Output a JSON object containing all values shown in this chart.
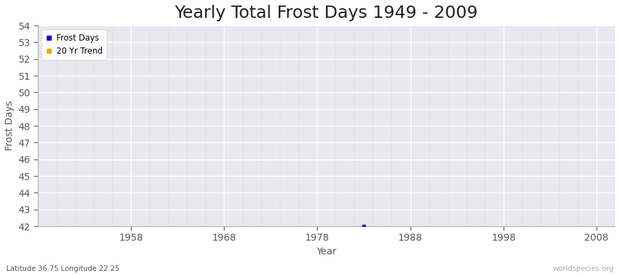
{
  "title": "Yearly Total Frost Days 1949 - 2009",
  "xlabel": "Year",
  "ylabel": "Frost Days",
  "xlim": [
    1948,
    2010
  ],
  "ylim": [
    42,
    54
  ],
  "yticks": [
    42,
    43,
    44,
    45,
    46,
    47,
    48,
    49,
    50,
    51,
    52,
    53,
    54
  ],
  "xticks": [
    1958,
    1968,
    1978,
    1988,
    1998,
    2008
  ],
  "data_points_x": [
    1983
  ],
  "data_points_y": [
    42
  ],
  "data_color": "#0000ee",
  "trend_color": "#ffa500",
  "plot_bg_color": "#e8e8ee",
  "fig_bg_color": "#ffffff",
  "grid_major_color": "#ffffff",
  "grid_minor_color": "#d8d8e4",
  "legend_items": [
    "Frost Days",
    "20 Yr Trend"
  ],
  "legend_colors": [
    "#0000ee",
    "#ffa500"
  ],
  "subtitle": "Latitude 36.75 Longitude 22.25",
  "watermark": "worldspecies.org",
  "title_fontsize": 18,
  "label_fontsize": 10,
  "tick_fontsize": 10,
  "tick_color": "#555555",
  "title_color": "#222222"
}
